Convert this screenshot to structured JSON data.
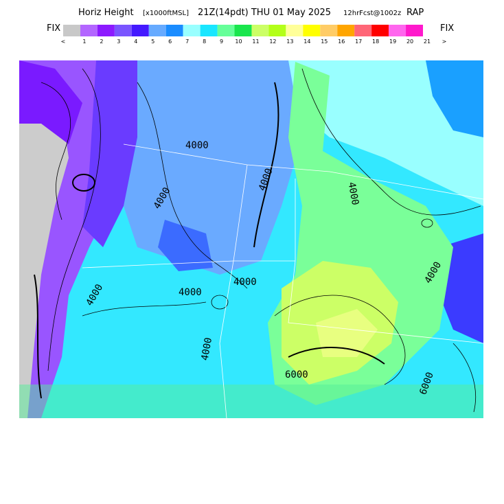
{
  "header": {
    "title": "Horiz Height",
    "units": "[x1000ftMSL]",
    "valid": "21Z(14pdt) THU 01 May 2025",
    "forecast": "12hrFcst@1002z",
    "model": "RAP"
  },
  "colorbar": {
    "left_label": "FIX",
    "right_label": "FIX",
    "colors": [
      "#c8c8c8",
      "#b366ff",
      "#8c1aff",
      "#7a55ff",
      "#4419ff",
      "#66aaff",
      "#1a8cff",
      "#99ffff",
      "#19e6ff",
      "#66ff99",
      "#19e64d",
      "#ccff66",
      "#b3ff19",
      "#ffff99",
      "#ffff00",
      "#ffcc66",
      "#ffa500",
      "#ff6677",
      "#ff0000",
      "#ff66ee",
      "#ff19cc"
    ],
    "labels": [
      "<",
      "1",
      "2",
      "3",
      "4",
      "5",
      "6",
      "7",
      "8",
      "9",
      "10",
      "11",
      "12",
      "13",
      "14",
      "15",
      "16",
      "17",
      "18",
      "19",
      "20",
      "21",
      ">"
    ]
  },
  "map": {
    "contour_labels": [
      "4000",
      "4000",
      "4000",
      "4000",
      "4000",
      "4000",
      "4000",
      "4000",
      "4000",
      "6000",
      "6000"
    ]
  }
}
